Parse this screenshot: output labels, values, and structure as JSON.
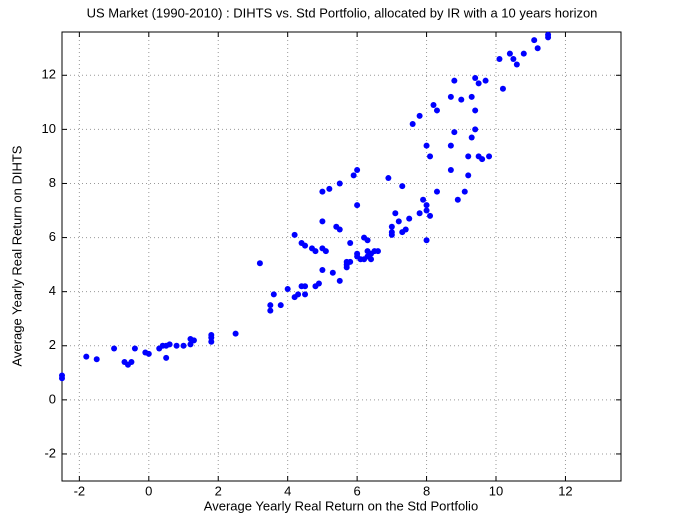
{
  "chart_data": {
    "type": "scatter",
    "title": "US Market (1990-2010) : DIHTS vs. Std Portfolio, allocated by IR with a 10 years horizon",
    "x_label": "Average Yearly Real Return on the Std Portfolio",
    "y_label": "Average Yearly Real Return on DIHTS",
    "color": "#0000ff",
    "grid": true,
    "xlim": [
      -2.5,
      13.6
    ],
    "ylim": [
      -3,
      13.6
    ],
    "xticks": [
      -2,
      0,
      2,
      4,
      6,
      8,
      10,
      12
    ],
    "yticks": [
      -2,
      0,
      2,
      4,
      6,
      8,
      10,
      12
    ],
    "x": [
      -2.5,
      -2.5,
      -1.8,
      -1.5,
      -1,
      -0.7,
      -0.6,
      -0.5,
      -0.4,
      -0.1,
      0,
      0.3,
      0.4,
      0.5,
      0.6,
      0.5,
      0.8,
      1.0,
      1.2,
      1.3,
      1.2,
      1.8,
      1.8,
      1.8,
      2.5,
      3.2,
      3.5,
      3.5,
      3.6,
      3.8,
      4.0,
      4.2,
      4.3,
      4.4,
      4.5,
      4.5,
      4.2,
      4.4,
      4.5,
      4.7,
      4.8,
      4.8,
      4.9,
      5.0,
      5.0,
      5.1,
      5.0,
      5.0,
      5.2,
      5.3,
      5.4,
      5.5,
      5.5,
      5.5,
      5.7,
      5.7,
      5.7,
      5.8,
      5.8,
      5.9,
      6.0,
      6.0,
      6.0,
      6.0,
      6.1,
      6.2,
      6.3,
      6.3,
      6.4,
      6.4,
      6.5,
      6.6,
      6.2,
      6.3,
      6.9,
      7.0,
      7.0,
      7.0,
      7.1,
      7.2,
      7.3,
      7.3,
      7.4,
      7.5,
      7.6,
      7.8,
      7.8,
      7.9,
      8.0,
      8.0,
      8.1,
      8.0,
      8.0,
      8.1,
      8.2,
      8.3,
      8.3,
      8.7,
      8.7,
      8.8,
      8.7,
      8.8,
      8.9,
      9.0,
      9.1,
      9.2,
      9.2,
      9.3,
      9.3,
      9.4,
      9.4,
      9.4,
      9.5,
      9.5,
      9.6,
      9.7,
      9.8,
      10.1,
      10.2,
      10.4,
      10.5,
      10.6,
      10.8,
      11.1,
      11.2,
      11.5,
      11.5
    ],
    "values": [
      0.9,
      0.8,
      1.6,
      1.5,
      1.9,
      1.4,
      1.3,
      1.4,
      1.9,
      1.75,
      1.7,
      1.9,
      2.0,
      2.0,
      2.05,
      1.55,
      2.0,
      2.0,
      2.05,
      2.2,
      2.25,
      2.15,
      2.3,
      2.4,
      2.45,
      5.05,
      3.3,
      3.5,
      3.9,
      3.5,
      4.1,
      3.8,
      3.9,
      4.2,
      4.2,
      3.9,
      6.1,
      5.8,
      5.7,
      5.6,
      5.5,
      4.2,
      4.3,
      4.8,
      5.6,
      5.5,
      6.6,
      7.7,
      7.8,
      4.7,
      6.4,
      6.3,
      8.0,
      4.4,
      4.9,
      5.0,
      5.1,
      5.1,
      5.8,
      8.3,
      8.5,
      7.2,
      5.4,
      5.3,
      5.2,
      5.2,
      5.3,
      5.5,
      5.4,
      5.2,
      5.5,
      5.5,
      6.0,
      5.9,
      8.2,
      6.2,
      6.4,
      6.1,
      6.9,
      6.6,
      6.2,
      7.9,
      6.3,
      6.7,
      10.2,
      10.5,
      6.9,
      7.4,
      7.2,
      7.0,
      6.8,
      5.9,
      9.4,
      9.0,
      10.9,
      10.7,
      7.7,
      8.5,
      9.4,
      9.9,
      11.2,
      11.8,
      7.4,
      11.1,
      7.7,
      8.3,
      9.0,
      9.7,
      11.2,
      10.0,
      10.7,
      11.9,
      11.7,
      9.0,
      8.9,
      11.8,
      9.0,
      12.6,
      11.5,
      12.8,
      12.6,
      12.4,
      12.8,
      13.3,
      13.0,
      13.5,
      13.4
    ]
  }
}
